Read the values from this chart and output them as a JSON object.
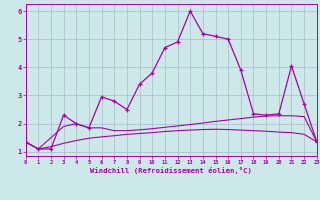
{
  "xlabel": "Windchill (Refroidissement éolien,°C)",
  "bg_color": "#cce8e8",
  "grid_color": "#aabbcc",
  "line_color": "#aa00aa",
  "x_values": [
    0,
    1,
    2,
    3,
    4,
    5,
    6,
    7,
    8,
    9,
    10,
    11,
    12,
    13,
    14,
    15,
    16,
    17,
    18,
    19,
    20,
    21,
    22,
    23
  ],
  "line1_y": [
    1.35,
    1.1,
    1.1,
    2.3,
    2.0,
    1.85,
    2.95,
    2.8,
    2.5,
    3.4,
    3.8,
    4.7,
    4.9,
    6.0,
    5.2,
    5.1,
    5.0,
    3.9,
    2.35,
    2.3,
    2.35,
    4.05,
    2.7,
    1.35
  ],
  "line2_y": [
    1.35,
    1.1,
    1.5,
    1.9,
    2.0,
    1.85,
    1.85,
    1.75,
    1.75,
    1.78,
    1.82,
    1.87,
    1.92,
    1.97,
    2.02,
    2.08,
    2.13,
    2.18,
    2.23,
    2.27,
    2.28,
    2.28,
    2.25,
    1.35
  ],
  "line3_y": [
    1.35,
    1.1,
    1.18,
    1.3,
    1.4,
    1.48,
    1.53,
    1.57,
    1.62,
    1.65,
    1.68,
    1.72,
    1.75,
    1.77,
    1.79,
    1.8,
    1.79,
    1.77,
    1.75,
    1.73,
    1.7,
    1.68,
    1.62,
    1.35
  ],
  "ylim": [
    0.85,
    6.25
  ],
  "xlim": [
    0,
    23
  ],
  "yticks": [
    1,
    2,
    3,
    4,
    5,
    6
  ],
  "xticks": [
    0,
    1,
    2,
    3,
    4,
    5,
    6,
    7,
    8,
    9,
    10,
    11,
    12,
    13,
    14,
    15,
    16,
    17,
    18,
    19,
    20,
    21,
    22,
    23
  ]
}
